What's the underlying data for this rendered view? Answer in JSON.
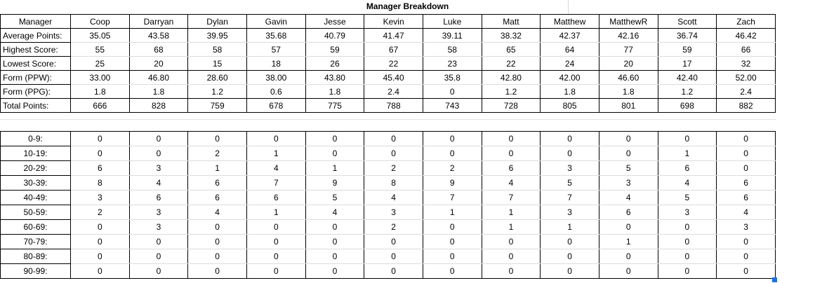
{
  "title": "Manager Breakdown",
  "colors": {
    "border": "#000000",
    "gridline": "#dadce0",
    "selection_handle_blue": "#1a73e8"
  },
  "managers": [
    "Coop",
    "Darryan",
    "Dylan",
    "Gavin",
    "Jesse",
    "Kevin",
    "Luke",
    "Matt",
    "Matthew",
    "MatthewR",
    "Scott",
    "Zach"
  ],
  "summary_table": {
    "header_label": "Manager",
    "rows": [
      {
        "label": "Average Points:",
        "values": [
          "35.05",
          "43.58",
          "39.95",
          "35.68",
          "40.79",
          "41.47",
          "39.11",
          "38.32",
          "42.37",
          "42.16",
          "36.74",
          "46.42"
        ]
      },
      {
        "label": "Highest Score:",
        "values": [
          "55",
          "68",
          "58",
          "57",
          "59",
          "67",
          "58",
          "65",
          "64",
          "77",
          "59",
          "66"
        ]
      },
      {
        "label": "Lowest Score:",
        "values": [
          "25",
          "20",
          "15",
          "18",
          "26",
          "22",
          "23",
          "22",
          "24",
          "20",
          "17",
          "32"
        ]
      },
      {
        "label": "Form (PPW):",
        "values": [
          "33.00",
          "46.80",
          "28.60",
          "38.00",
          "43.80",
          "45.40",
          "35.8",
          "42.80",
          "42.00",
          "46.60",
          "42.40",
          "52.00"
        ]
      },
      {
        "label": "Form (PPG):",
        "values": [
          "1.8",
          "1.8",
          "1.2",
          "0.6",
          "1.8",
          "2.4",
          "0",
          "1.2",
          "1.8",
          "1.8",
          "1.2",
          "2.4"
        ]
      },
      {
        "label": "Total Points:",
        "values": [
          "666",
          "828",
          "759",
          "678",
          "775",
          "788",
          "743",
          "728",
          "805",
          "801",
          "698",
          "882"
        ]
      }
    ]
  },
  "distribution_table": {
    "rows": [
      {
        "label": "0-9:",
        "values": [
          "0",
          "0",
          "0",
          "0",
          "0",
          "0",
          "0",
          "0",
          "0",
          "0",
          "0",
          "0"
        ]
      },
      {
        "label": "10-19:",
        "values": [
          "0",
          "0",
          "2",
          "1",
          "0",
          "0",
          "0",
          "0",
          "0",
          "0",
          "1",
          "0"
        ]
      },
      {
        "label": "20-29:",
        "values": [
          "6",
          "3",
          "1",
          "4",
          "1",
          "2",
          "2",
          "6",
          "3",
          "5",
          "6",
          "0"
        ]
      },
      {
        "label": "30-39:",
        "values": [
          "8",
          "4",
          "6",
          "7",
          "9",
          "8",
          "9",
          "4",
          "5",
          "3",
          "4",
          "6"
        ]
      },
      {
        "label": "40-49:",
        "values": [
          "3",
          "6",
          "6",
          "6",
          "5",
          "4",
          "7",
          "7",
          "7",
          "4",
          "5",
          "6"
        ]
      },
      {
        "label": "50-59:",
        "values": [
          "2",
          "3",
          "4",
          "1",
          "4",
          "3",
          "1",
          "1",
          "3",
          "6",
          "3",
          "4"
        ]
      },
      {
        "label": "60-69:",
        "values": [
          "0",
          "3",
          "0",
          "0",
          "0",
          "2",
          "0",
          "1",
          "1",
          "0",
          "0",
          "3"
        ]
      },
      {
        "label": "70-79:",
        "values": [
          "0",
          "0",
          "0",
          "0",
          "0",
          "0",
          "0",
          "0",
          "0",
          "1",
          "0",
          "0"
        ]
      },
      {
        "label": "80-89:",
        "values": [
          "0",
          "0",
          "0",
          "0",
          "0",
          "0",
          "0",
          "0",
          "0",
          "0",
          "0",
          "0"
        ]
      },
      {
        "label": "90-99:",
        "values": [
          "0",
          "0",
          "0",
          "0",
          "0",
          "0",
          "0",
          "0",
          "0",
          "0",
          "0",
          "0"
        ]
      }
    ]
  }
}
